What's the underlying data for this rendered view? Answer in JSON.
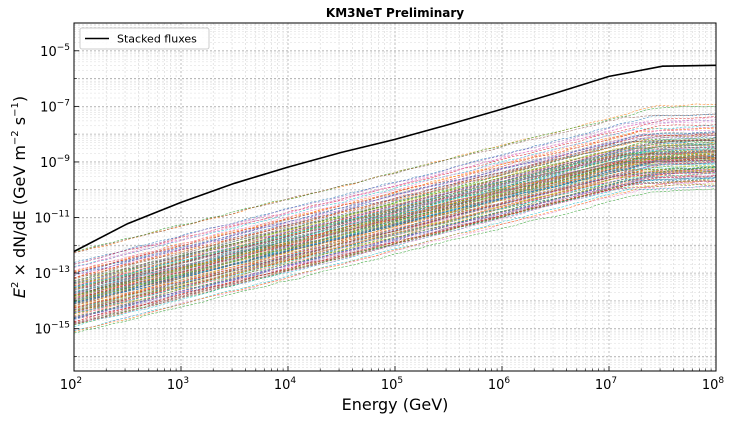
{
  "chart_data": {
    "type": "line",
    "title": "KM3NeT Preliminary",
    "xlabel": "Energy (GeV)",
    "ylabel": {
      "prefix": "E",
      "sup1": "2",
      "middle": " × dN/dE (GeV m",
      "sup2": "−2",
      "middle2": " s",
      "sup3": "−1",
      "suffix": ")"
    },
    "xscale": "log",
    "yscale": "log",
    "xlim": [
      100,
      100000000
    ],
    "ylim": [
      3e-17,
      0.0001
    ],
    "x_ticks": [
      {
        "base": "10",
        "exp": "2",
        "value": 100
      },
      {
        "base": "10",
        "exp": "3",
        "value": 1000
      },
      {
        "base": "10",
        "exp": "4",
        "value": 10000
      },
      {
        "base": "10",
        "exp": "5",
        "value": 100000
      },
      {
        "base": "10",
        "exp": "6",
        "value": 1000000
      },
      {
        "base": "10",
        "exp": "7",
        "value": 10000000
      },
      {
        "base": "10",
        "exp": "8",
        "value": 100000000
      }
    ],
    "y_ticks": [
      {
        "base": "10",
        "exp": "−15",
        "value": 1e-15
      },
      {
        "base": "10",
        "exp": "−13",
        "value": 1e-13
      },
      {
        "base": "10",
        "exp": "−11",
        "value": 1e-11
      },
      {
        "base": "10",
        "exp": "−9",
        "value": 1e-09
      },
      {
        "base": "10",
        "exp": "−7",
        "value": 1e-07
      },
      {
        "base": "10",
        "exp": "−5",
        "value": 1e-05
      }
    ],
    "grid": true,
    "legend": {
      "position": "top-left",
      "entries": [
        "Stacked fluxes"
      ]
    },
    "stacked_series": {
      "name": "Stacked fluxes",
      "color": "#000000",
      "x": [
        100,
        316,
        1000,
        3162,
        10000,
        31623,
        100000,
        316228,
        1000000,
        3162278,
        10000000,
        31622777,
        100000000
      ],
      "y": [
        6e-13,
        6e-12,
        3.5e-11,
        1.7e-10,
        6.5e-10,
        2.2e-09,
        6.5e-09,
        2.2e-08,
        8e-08,
        3e-07,
        1.2e-06,
        2.8e-06,
        3e-06
      ]
    },
    "individual_sources": {
      "count": 160,
      "style": "dashed",
      "note": "thin dashed per-source flux curves, rising roughly as E^0.95 and flattening above 2×10^7 GeV",
      "y_at_100GeV_range": [
        2e-16,
        8e-13
      ],
      "colors": [
        "#1f77b4",
        "#ff7f0e",
        "#2ca02c",
        "#d62728",
        "#9467bd",
        "#8c564b",
        "#e377c2",
        "#7f7f7f",
        "#bcbd22",
        "#17becf"
      ]
    }
  }
}
